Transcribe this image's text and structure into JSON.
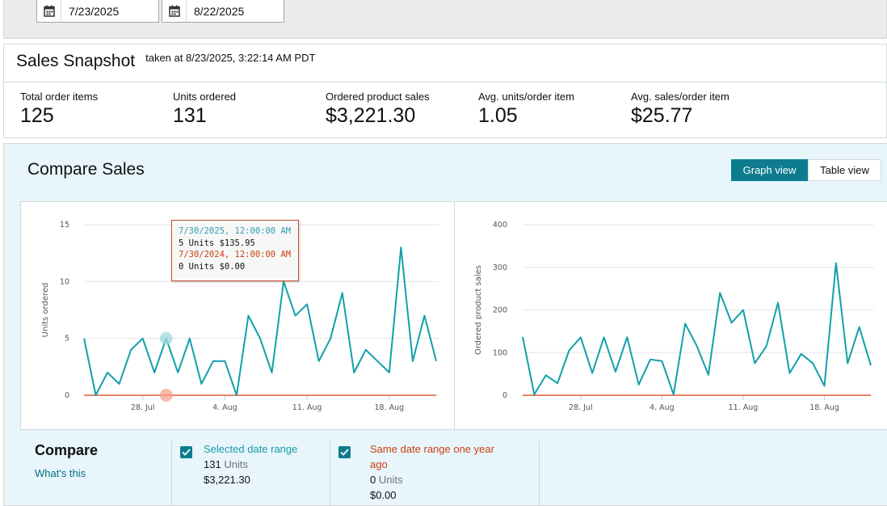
{
  "date_range": {
    "start": "7/23/2025",
    "end": "8/22/2025"
  },
  "snapshot": {
    "title": "Sales Snapshot",
    "taken": "taken at 8/23/2025, 3:22:14 AM PDT",
    "metrics": [
      {
        "label": "Total order items",
        "value": "125"
      },
      {
        "label": "Units ordered",
        "value": "131"
      },
      {
        "label": "Ordered product sales",
        "value": "$3,221.30"
      },
      {
        "label": "Avg. units/order item",
        "value": "1.05"
      },
      {
        "label": "Avg. sales/order item",
        "value": "$25.77"
      }
    ]
  },
  "compare": {
    "title": "Compare Sales",
    "graph_view_label": "Graph view",
    "table_view_label": "Table view",
    "heading": "Compare",
    "whats_this": "What's this",
    "legend": [
      {
        "title": "Selected date range",
        "units": "131",
        "units_label": "Units",
        "sales": "$3,221.30",
        "color": "#1a9aa8"
      },
      {
        "title": "Same date range one year ago",
        "units": "0",
        "units_label": "Units",
        "sales": "$0.00",
        "color": "#c8400f"
      }
    ]
  },
  "tooltip": {
    "line1": "7/30/2025, 12:00:00 AM",
    "line2": "5 Units $135.95",
    "line3": "7/30/2024, 12:00:00 AM",
    "line4": "0 Units $0.00"
  },
  "colors": {
    "current": "#11a0aa",
    "previous": "#e05a3a",
    "accent": "#0e7b8f"
  },
  "chart_data": [
    {
      "type": "line",
      "ylabel": "Units ordered",
      "ylim": [
        0,
        15
      ],
      "yticks": [
        "0",
        "5",
        "10",
        "15"
      ],
      "xticks": [
        {
          "label": "28. Jul",
          "day": 5
        },
        {
          "label": "4. Aug",
          "day": 12
        },
        {
          "label": "11. Aug",
          "day": 19
        },
        {
          "label": "18. Aug",
          "day": 26
        }
      ],
      "x": [
        "7/23",
        "7/24",
        "7/25",
        "7/26",
        "7/27",
        "7/28",
        "7/29",
        "7/30",
        "7/31",
        "8/1",
        "8/2",
        "8/3",
        "8/4",
        "8/5",
        "8/6",
        "8/7",
        "8/8",
        "8/9",
        "8/10",
        "8/11",
        "8/12",
        "8/13",
        "8/14",
        "8/15",
        "8/16",
        "8/17",
        "8/18",
        "8/19",
        "8/20",
        "8/21",
        "8/22"
      ],
      "series": [
        {
          "values": [
            5,
            0,
            2,
            1,
            4,
            5,
            2,
            5,
            2,
            5,
            1,
            3,
            3,
            0,
            7,
            5,
            2,
            10,
            7,
            8,
            3,
            5,
            9,
            2,
            4,
            3,
            2,
            13,
            3,
            7,
            3
          ]
        },
        {
          "values": [
            0,
            0,
            0,
            0,
            0,
            0,
            0,
            0,
            0,
            0,
            0,
            0,
            0,
            0,
            0,
            0,
            0,
            0,
            0,
            0,
            0,
            0,
            0,
            0,
            0,
            0,
            0,
            0,
            0,
            0,
            0
          ]
        }
      ],
      "highlight_day": 7
    },
    {
      "type": "line",
      "ylabel": "Ordered product sales",
      "ylim": [
        0,
        400
      ],
      "yticks": [
        "0",
        "100",
        "200",
        "300",
        "400"
      ],
      "xticks": [
        {
          "label": "28. Jul",
          "day": 5
        },
        {
          "label": "4. Aug",
          "day": 12
        },
        {
          "label": "11. Aug",
          "day": 19
        },
        {
          "label": "18. Aug",
          "day": 26
        }
      ],
      "x": [
        "7/23",
        "7/24",
        "7/25",
        "7/26",
        "7/27",
        "7/28",
        "7/29",
        "7/30",
        "7/31",
        "8/1",
        "8/2",
        "8/3",
        "8/4",
        "8/5",
        "8/6",
        "8/7",
        "8/8",
        "8/9",
        "8/10",
        "8/11",
        "8/12",
        "8/13",
        "8/14",
        "8/15",
        "8/16",
        "8/17",
        "8/18",
        "8/19",
        "8/20",
        "8/21",
        "8/22"
      ],
      "series": [
        {
          "values": [
            137,
            2,
            47,
            28,
            105,
            136,
            52,
            135.95,
            55,
            136,
            25,
            84,
            80,
            2,
            168,
            116,
            48,
            240,
            170,
            200,
            75,
            115,
            217,
            52,
            97,
            75,
            22,
            310,
            75,
            160,
            70
          ]
        },
        {
          "values": [
            0,
            0,
            0,
            0,
            0,
            0,
            0,
            0,
            0,
            0,
            0,
            0,
            0,
            0,
            0,
            0,
            0,
            0,
            0,
            0,
            0,
            0,
            0,
            0,
            0,
            0,
            0,
            0,
            0,
            0,
            0
          ]
        }
      ]
    }
  ]
}
